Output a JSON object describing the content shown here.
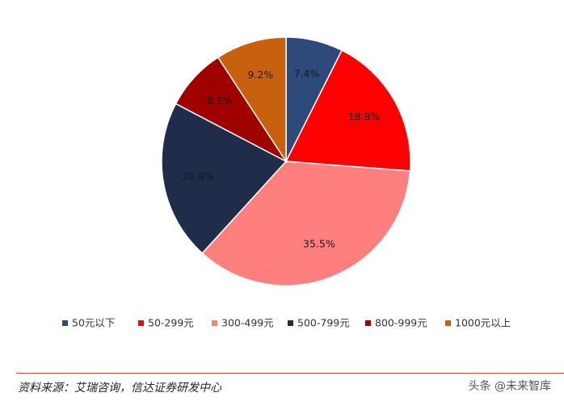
{
  "chart_data": {
    "type": "pie",
    "title": "",
    "legend_position": "bottom",
    "slices": [
      {
        "name": "50元以下",
        "value": 7.4,
        "label": "7.4%",
        "color": "#2E4A7A"
      },
      {
        "name": "50-299元",
        "value": 18.8,
        "label": "18.8%",
        "color": "#FF0000"
      },
      {
        "name": "300-499元",
        "value": 35.5,
        "label": "35.5%",
        "color": "#FF7F7F"
      },
      {
        "name": "500-799元",
        "value": 20.9,
        "label": "20.9%",
        "color": "#1F2D4A"
      },
      {
        "name": "800-999元",
        "value": 8.1,
        "label": "8.1%",
        "color": "#A00000"
      },
      {
        "name": "1000元以上",
        "value": 9.2,
        "label": "9.2%",
        "color": "#C8610F"
      }
    ]
  },
  "footer": {
    "source": "资料来源：艾瑞咨询，信达证券研发中心",
    "watermark": "头条 @未来智库"
  }
}
